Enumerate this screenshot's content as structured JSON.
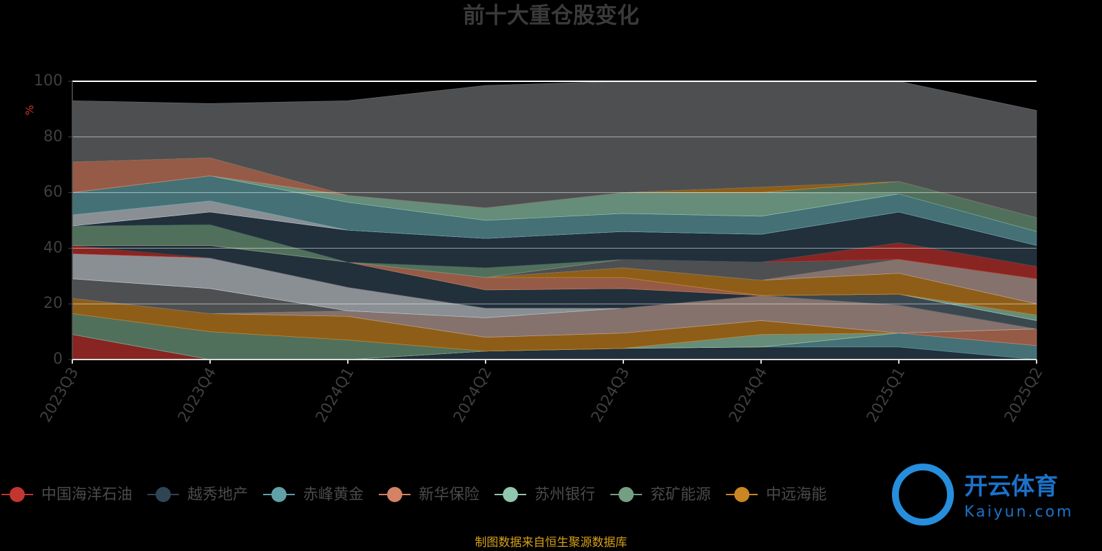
{
  "chart_data": {
    "type": "stacked-area",
    "title": "前十大重仓股变化",
    "y_label": "%",
    "source": "制图数据来自恒生聚源数据库",
    "watermark": [
      "开云体育",
      "Kaiyun.com"
    ],
    "categories": [
      "2023Q3",
      "2023Q4",
      "2024Q1",
      "2024Q2",
      "2024Q3",
      "2024Q4",
      "2025Q1",
      "2025Q2"
    ],
    "ylim": [
      0,
      100
    ],
    "yticks": [
      0,
      20,
      40,
      60,
      80,
      100
    ],
    "grid": true,
    "series": [
      {
        "name": "中国海洋石油",
        "color": "#c23531",
        "values": [
          9,
          0,
          0,
          0,
          0,
          0,
          0,
          0
        ]
      },
      {
        "name": "越秀地产",
        "color": "#2f4554",
        "values": [
          0,
          0,
          0,
          3,
          4,
          4.5,
          4.5,
          0
        ]
      },
      {
        "name": "赤峰黄金",
        "color": "#61a0a8",
        "values": [
          0,
          0,
          0,
          0,
          0,
          0,
          5,
          5
        ]
      },
      {
        "name": "新华保险",
        "color": "#d48265",
        "values": [
          0,
          0,
          0,
          0,
          0,
          0,
          0,
          6
        ]
      },
      {
        "name": "苏州银行",
        "color": "#91c7ae",
        "values": [
          0,
          0,
          0,
          0,
          0,
          4.5,
          0,
          0
        ]
      },
      {
        "name": "兖矿能源",
        "color": "#749f83",
        "values": [
          7.5,
          10,
          7,
          0,
          0,
          0,
          0,
          0
        ]
      },
      {
        "name": "中远海能",
        "color": "#ca8622",
        "values": [
          5.5,
          6.5,
          8.5,
          5,
          5.5,
          5,
          0,
          0
        ]
      },
      {
        "name": null,
        "color": "#bda29a",
        "values": [
          0,
          0,
          2,
          7,
          9,
          9,
          10,
          0
        ]
      },
      {
        "name": null,
        "color": "#6e7074",
        "values": [
          7,
          9,
          0,
          0,
          0,
          0,
          0,
          0
        ]
      },
      {
        "name": null,
        "color": "#546570",
        "values": [
          0,
          0,
          0,
          0,
          0,
          0,
          4,
          3
        ]
      },
      {
        "name": null,
        "color": "#c4ccd3",
        "values": [
          9,
          11,
          8.5,
          3.5,
          0,
          0,
          0,
          0
        ]
      },
      {
        "name": null,
        "color": "#91c7ae",
        "values": [
          0,
          0,
          0,
          0,
          0,
          0,
          0,
          2
        ]
      },
      {
        "name": null,
        "color": "#c23531",
        "values": [
          3,
          0,
          0,
          0,
          0,
          0,
          0,
          0
        ]
      },
      {
        "name": null,
        "color": "#2f4554",
        "values": [
          0,
          4.5,
          9,
          6.5,
          7,
          0,
          0,
          0
        ]
      },
      {
        "name": null,
        "color": "#d48265",
        "values": [
          0,
          0,
          0,
          4.5,
          4,
          0,
          0,
          0
        ]
      },
      {
        "name": null,
        "color": "#ca8622",
        "values": [
          0,
          0,
          0,
          0,
          3.5,
          5.5,
          7.5,
          4
        ]
      },
      {
        "name": null,
        "color": "#bda29a",
        "values": [
          0,
          0,
          0,
          0,
          0,
          0,
          5,
          9
        ]
      },
      {
        "name": null,
        "color": "#6e7074",
        "values": [
          0,
          0,
          0,
          0,
          3,
          6.5,
          0,
          0
        ]
      },
      {
        "name": null,
        "color": "#c23531",
        "values": [
          0,
          0,
          0,
          0,
          0,
          0,
          6,
          4.5
        ]
      },
      {
        "name": null,
        "color": "#749f83",
        "values": [
          7,
          7.5,
          0,
          3.5,
          0,
          0,
          0,
          0
        ]
      },
      {
        "name": null,
        "color": "#2f4554",
        "values": [
          0,
          4.5,
          11.5,
          10.5,
          10,
          10,
          11,
          7.5
        ]
      },
      {
        "name": null,
        "color": "#c4ccd3",
        "values": [
          4,
          4,
          0,
          0,
          0,
          0,
          0,
          0
        ]
      },
      {
        "name": null,
        "color": "#61a0a8",
        "values": [
          8,
          9,
          10,
          6.5,
          6.5,
          6.5,
          6.5,
          5
        ]
      },
      {
        "name": null,
        "color": "#91c7ae",
        "values": [
          0,
          0,
          2.5,
          4.5,
          7.5,
          8.5,
          0,
          0
        ]
      },
      {
        "name": null,
        "color": "#749f83",
        "values": [
          0,
          0,
          0,
          0,
          0,
          0,
          4.5,
          5
        ]
      },
      {
        "name": null,
        "color": "#d48265",
        "values": [
          11,
          6.5,
          0,
          0,
          0,
          0,
          0,
          0
        ]
      },
      {
        "name": null,
        "color": "#ca8622",
        "values": [
          0,
          0,
          0,
          0,
          0,
          2,
          0,
          0
        ]
      },
      {
        "name": null,
        "color": "#6e7074",
        "values": [
          22,
          19.5,
          34,
          44,
          40,
          38,
          36,
          38.5
        ]
      }
    ]
  }
}
